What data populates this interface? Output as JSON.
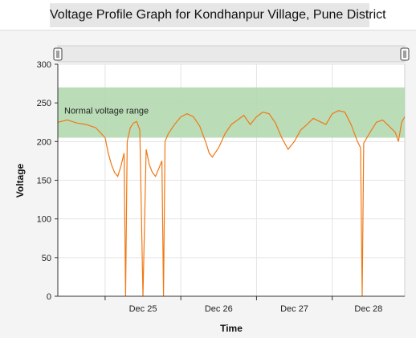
{
  "chart_data": {
    "type": "line",
    "title": "Voltage Profile Graph for Kondhanpur Village, Pune District",
    "xlabel": "Time",
    "ylabel": "Voltage",
    "ylim": [
      0,
      300
    ],
    "yticks": [
      0,
      50,
      100,
      150,
      200,
      250,
      300
    ],
    "xlim": [
      "2012-12-24T09:00",
      "2012-12-28T23:00"
    ],
    "xticks": [
      {
        "label": "Dec 25",
        "t": "2012-12-25T00:00"
      },
      {
        "label": "Dec 26",
        "t": "2012-12-26T00:00"
      },
      {
        "label": "Dec 27",
        "t": "2012-12-27T00:00"
      },
      {
        "label": "Dec 28",
        "t": "2012-12-28T00:00"
      }
    ],
    "band": {
      "label": "Normal voltage range",
      "low": 205,
      "high": 270,
      "color": "#b3d9b0"
    },
    "line_color": "#f07814",
    "grid": true,
    "series": [
      {
        "name": "",
        "points": [
          [
            "2012-12-24T09:00",
            225
          ],
          [
            "2012-12-24T12:00",
            228
          ],
          [
            "2012-12-24T15:00",
            224
          ],
          [
            "2012-12-24T18:00",
            222
          ],
          [
            "2012-12-24T21:00",
            218
          ],
          [
            "2012-12-25T00:00",
            205
          ],
          [
            "2012-12-25T01:00",
            185
          ],
          [
            "2012-12-25T02:00",
            170
          ],
          [
            "2012-12-25T03:00",
            160
          ],
          [
            "2012-12-25T04:00",
            155
          ],
          [
            "2012-12-25T05:00",
            168
          ],
          [
            "2012-12-25T06:00",
            185
          ],
          [
            "2012-12-25T06:30",
            0
          ],
          [
            "2012-12-25T07:00",
            200
          ],
          [
            "2012-12-25T08:00",
            218
          ],
          [
            "2012-12-25T09:00",
            224
          ],
          [
            "2012-12-25T10:00",
            226
          ],
          [
            "2012-12-25T11:00",
            215
          ],
          [
            "2012-12-25T12:00",
            0
          ],
          [
            "2012-12-25T13:00",
            190
          ],
          [
            "2012-12-25T14:00",
            170
          ],
          [
            "2012-12-25T15:00",
            160
          ],
          [
            "2012-12-25T16:00",
            155
          ],
          [
            "2012-12-25T17:00",
            165
          ],
          [
            "2012-12-25T18:00",
            175
          ],
          [
            "2012-12-25T18:30",
            0
          ],
          [
            "2012-12-25T19:00",
            200
          ],
          [
            "2012-12-25T20:00",
            210
          ],
          [
            "2012-12-25T22:00",
            222
          ],
          [
            "2012-12-26T00:00",
            232
          ],
          [
            "2012-12-26T02:00",
            236
          ],
          [
            "2012-12-26T04:00",
            232
          ],
          [
            "2012-12-26T06:00",
            220
          ],
          [
            "2012-12-26T08:00",
            198
          ],
          [
            "2012-12-26T09:00",
            185
          ],
          [
            "2012-12-26T10:00",
            180
          ],
          [
            "2012-12-26T12:00",
            192
          ],
          [
            "2012-12-26T14:00",
            210
          ],
          [
            "2012-12-26T16:00",
            222
          ],
          [
            "2012-12-26T18:00",
            228
          ],
          [
            "2012-12-26T20:00",
            234
          ],
          [
            "2012-12-26T22:00",
            222
          ],
          [
            "2012-12-27T00:00",
            232
          ],
          [
            "2012-12-27T02:00",
            238
          ],
          [
            "2012-12-27T04:00",
            236
          ],
          [
            "2012-12-27T06:00",
            224
          ],
          [
            "2012-12-27T08:00",
            205
          ],
          [
            "2012-12-27T10:00",
            190
          ],
          [
            "2012-12-27T12:00",
            200
          ],
          [
            "2012-12-27T14:00",
            215
          ],
          [
            "2012-12-27T16:00",
            222
          ],
          [
            "2012-12-27T18:00",
            230
          ],
          [
            "2012-12-27T20:00",
            226
          ],
          [
            "2012-12-27T22:00",
            222
          ],
          [
            "2012-12-28T00:00",
            236
          ],
          [
            "2012-12-28T02:00",
            240
          ],
          [
            "2012-12-28T04:00",
            238
          ],
          [
            "2012-12-28T06:00",
            222
          ],
          [
            "2012-12-28T08:00",
            200
          ],
          [
            "2012-12-28T09:00",
            192
          ],
          [
            "2012-12-28T09:30",
            0
          ],
          [
            "2012-12-28T10:00",
            198
          ],
          [
            "2012-12-28T12:00",
            212
          ],
          [
            "2012-12-28T14:00",
            225
          ],
          [
            "2012-12-28T16:00",
            228
          ],
          [
            "2012-12-28T18:00",
            220
          ],
          [
            "2012-12-28T20:00",
            212
          ],
          [
            "2012-12-28T21:00",
            200
          ],
          [
            "2012-12-28T22:00",
            225
          ],
          [
            "2012-12-28T23:00",
            232
          ]
        ]
      }
    ]
  }
}
